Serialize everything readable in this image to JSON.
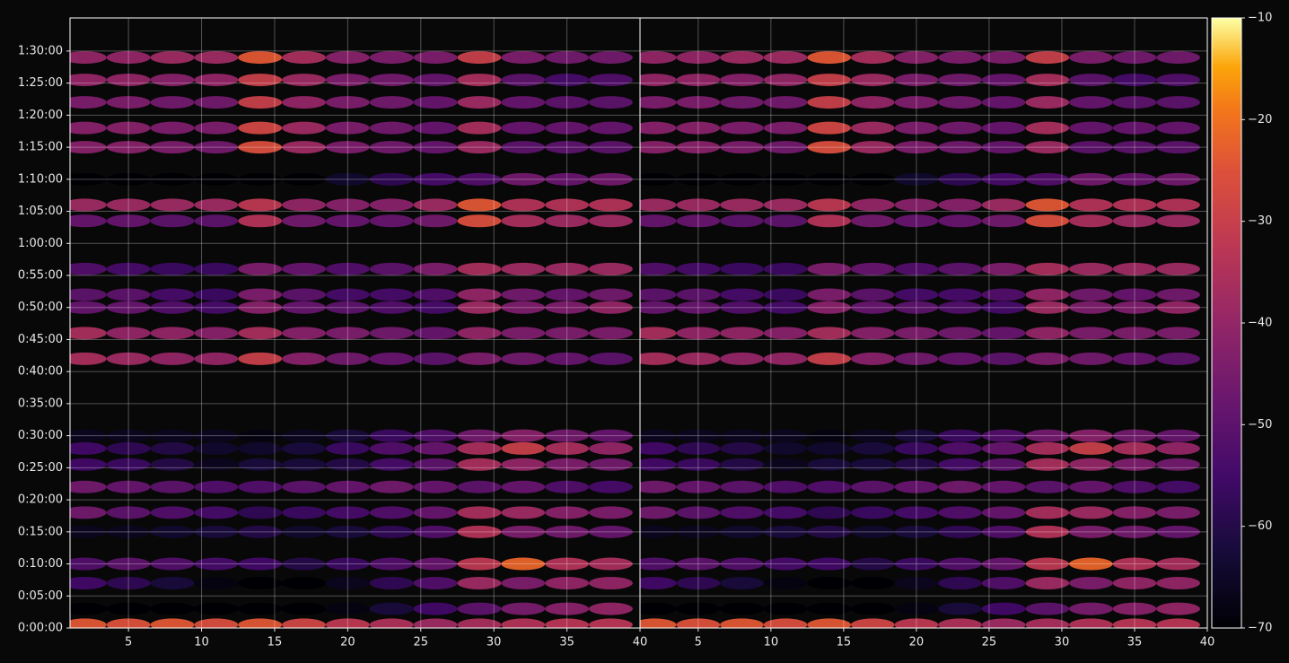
{
  "chart_data": [
    {
      "type": "heatmap",
      "x": [
        2,
        5,
        8,
        11,
        14,
        17,
        20,
        23,
        26,
        29,
        32,
        35,
        38
      ],
      "y": [
        30,
        180,
        420,
        600,
        900,
        1080,
        1320,
        1530,
        1680,
        1800,
        2520,
        2760,
        3000,
        3120,
        3360,
        3810,
        3960,
        4200,
        4500,
        4680,
        4920,
        5130,
        5340
      ],
      "z": [
        [
          -24,
          -25,
          -24,
          -26,
          -24,
          -28,
          -32,
          -35,
          -38,
          -36,
          -34,
          -33,
          -33
        ],
        [
          -70,
          -70,
          -70,
          -70,
          -70,
          -70,
          -68,
          -62,
          -55,
          -50,
          -45,
          -42,
          -40
        ],
        [
          -55,
          -58,
          -62,
          -68,
          -70,
          -70,
          -66,
          -58,
          -52,
          -38,
          -44,
          -40,
          -40
        ],
        [
          -52,
          -50,
          -52,
          -54,
          -55,
          -60,
          -56,
          -52,
          -48,
          -32,
          -22,
          -34,
          -36
        ],
        [
          -66,
          -66,
          -64,
          -62,
          -60,
          -64,
          -62,
          -58,
          -52,
          -34,
          -44,
          -46,
          -48
        ],
        [
          -46,
          -50,
          -52,
          -54,
          -58,
          -56,
          -54,
          -52,
          -48,
          -36,
          -38,
          -42,
          -44
        ],
        [
          -46,
          -48,
          -50,
          -52,
          -52,
          -50,
          -48,
          -46,
          -48,
          -50,
          -48,
          -52,
          -54
        ],
        [
          -55,
          -56,
          -60,
          -66,
          -62,
          -62,
          -60,
          -54,
          -50,
          -36,
          -40,
          -44,
          -46
        ],
        [
          -55,
          -58,
          -60,
          -64,
          -64,
          -62,
          -56,
          -52,
          -48,
          -36,
          -30,
          -36,
          -40
        ],
        [
          -66,
          -66,
          -66,
          -66,
          -68,
          -66,
          -62,
          -56,
          -52,
          -46,
          -42,
          -46,
          -48
        ],
        [
          -36,
          -38,
          -40,
          -40,
          -30,
          -42,
          -46,
          -48,
          -50,
          -44,
          -46,
          -48,
          -50
        ],
        [
          -36,
          -40,
          -40,
          -42,
          -36,
          -42,
          -44,
          -46,
          -48,
          -40,
          -44,
          -44,
          -44
        ],
        [
          -48,
          -48,
          -52,
          -54,
          -42,
          -48,
          -50,
          -52,
          -54,
          -38,
          -44,
          -44,
          -40
        ],
        [
          -50,
          -50,
          -54,
          -56,
          -44,
          -50,
          -54,
          -54,
          -52,
          -40,
          -46,
          -48,
          -46
        ],
        [
          -52,
          -54,
          -56,
          -56,
          -44,
          -48,
          -52,
          -50,
          -44,
          -36,
          -38,
          -38,
          -38
        ],
        [
          -48,
          -48,
          -50,
          -50,
          -34,
          -46,
          -48,
          -48,
          -46,
          -26,
          -36,
          -38,
          -38
        ],
        [
          -38,
          -38,
          -38,
          -38,
          -32,
          -40,
          -42,
          -42,
          -38,
          -24,
          -34,
          -34,
          -34
        ],
        [
          -70,
          -70,
          -70,
          -70,
          -70,
          -70,
          -64,
          -58,
          -54,
          -52,
          -46,
          -48,
          -46
        ],
        [
          -42,
          -42,
          -44,
          -46,
          -26,
          -38,
          -44,
          -46,
          -48,
          -38,
          -50,
          -50,
          -50
        ],
        [
          -42,
          -42,
          -44,
          -44,
          -28,
          -38,
          -44,
          -46,
          -48,
          -36,
          -48,
          -48,
          -48
        ],
        [
          -44,
          -44,
          -46,
          -46,
          -30,
          -40,
          -44,
          -46,
          -48,
          -38,
          -48,
          -50,
          -50
        ],
        [
          -40,
          -40,
          -42,
          -40,
          -30,
          -38,
          -44,
          -46,
          -48,
          -36,
          -50,
          -54,
          -52
        ],
        [
          -40,
          -40,
          -38,
          -38,
          -24,
          -36,
          -42,
          -44,
          -44,
          -30,
          -44,
          -46,
          -46
        ]
      ],
      "xlim": [
        1,
        40
      ],
      "ylim": [
        0,
        5710
      ],
      "zlim": [
        -70,
        -10
      ],
      "colormap": "inferno",
      "grid": true,
      "xticks": [
        5,
        10,
        15,
        20,
        25,
        30,
        35,
        40
      ],
      "yticks": [
        {
          "value": 0,
          "label": "0:00:00"
        },
        {
          "value": 300,
          "label": "0:05:00"
        },
        {
          "value": 600,
          "label": "0:10:00"
        },
        {
          "value": 900,
          "label": "0:15:00"
        },
        {
          "value": 1200,
          "label": "0:20:00"
        },
        {
          "value": 1500,
          "label": "0:25:00"
        },
        {
          "value": 1800,
          "label": "0:30:00"
        },
        {
          "value": 2100,
          "label": "0:35:00"
        },
        {
          "value": 2400,
          "label": "0:40:00"
        },
        {
          "value": 2700,
          "label": "0:45:00"
        },
        {
          "value": 3000,
          "label": "0:50:00"
        },
        {
          "value": 3300,
          "label": "0:55:00"
        },
        {
          "value": 3600,
          "label": "1:00:00"
        },
        {
          "value": 3900,
          "label": "1:05:00"
        },
        {
          "value": 4200,
          "label": "1:10:00"
        },
        {
          "value": 4500,
          "label": "1:15:00"
        },
        {
          "value": 4800,
          "label": "1:20:00"
        },
        {
          "value": 5100,
          "label": "1:25:00"
        },
        {
          "value": 5400,
          "label": "1:30:00"
        }
      ]
    },
    {
      "type": "heatmap",
      "xlim": [
        1,
        40
      ],
      "ylim": [
        0,
        5710
      ],
      "zlim": [
        -70,
        -10
      ],
      "colormap": "inferno",
      "grid": true,
      "xticks": [
        5,
        10,
        15,
        20,
        25,
        30,
        35,
        40
      ],
      "zticks": [
        {
          "value": -70,
          "label": "−70"
        },
        {
          "value": -60,
          "label": "−60"
        },
        {
          "value": -50,
          "label": "−50"
        },
        {
          "value": -40,
          "label": "−40"
        },
        {
          "value": -30,
          "label": "−30"
        },
        {
          "value": -20,
          "label": "−20"
        },
        {
          "value": -10,
          "label": "−10"
        }
      ]
    }
  ]
}
